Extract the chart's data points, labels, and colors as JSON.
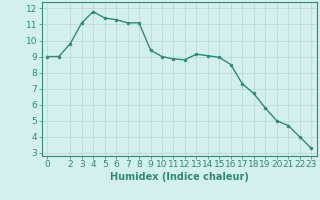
{
  "x": [
    0,
    1,
    2,
    3,
    4,
    5,
    6,
    7,
    8,
    9,
    10,
    11,
    12,
    13,
    14,
    15,
    16,
    17,
    18,
    19,
    20,
    21,
    22,
    23
  ],
  "y": [
    9.0,
    9.0,
    9.8,
    11.1,
    11.8,
    11.4,
    11.3,
    11.1,
    11.1,
    9.4,
    9.0,
    8.85,
    8.8,
    9.15,
    9.05,
    8.95,
    8.5,
    7.3,
    6.7,
    5.8,
    5.0,
    4.7,
    4.0,
    3.3
  ],
  "line_color": "#2e8b7a",
  "marker": "o",
  "marker_size": 2.0,
  "line_width": 1.0,
  "bg_color": "#d4f0ec",
  "grid_color": "#b8d8d4",
  "axis_color": "#2e8b7a",
  "xlabel": "Humidex (Indice chaleur)",
  "xlabel_fontsize": 7,
  "tick_fontsize": 6.5,
  "ylim": [
    2.8,
    12.4
  ],
  "xlim": [
    -0.5,
    23.5
  ],
  "yticks": [
    3,
    4,
    5,
    6,
    7,
    8,
    9,
    10,
    11,
    12
  ],
  "xticks": [
    0,
    2,
    3,
    4,
    5,
    6,
    7,
    8,
    9,
    10,
    11,
    12,
    13,
    14,
    15,
    16,
    17,
    18,
    19,
    20,
    21,
    22,
    23
  ]
}
